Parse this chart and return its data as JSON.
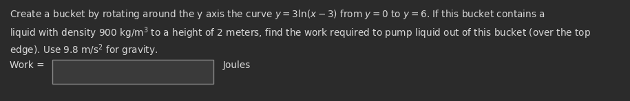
{
  "background_color": "#2b2b2b",
  "text_color": "#d8d8d8",
  "line1": "Create a bucket by rotating around the y axis the curve $y = 3\\ln(x - 3)$ from $y = 0$ to $y = 6$. If this bucket contains a",
  "line2": "liquid with density 900 kg/m$^3$ to a height of 2 meters, find the work required to pump liquid out of this bucket (over the top",
  "line3": "edge). Use 9.8 m/s$^2$ for gravity.",
  "work_label": "Work = ",
  "joules_label": "Joules",
  "font_size": 9.8,
  "font_family": "DejaVu Sans",
  "box_edge_color": "#888888",
  "box_face_color": "#3a3a3a"
}
